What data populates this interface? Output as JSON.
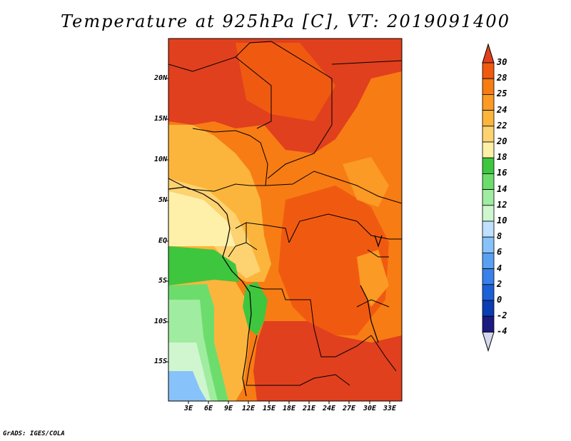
{
  "title": "Temperature at 925hPa [C], VT: 2019091400",
  "footer": "GrADS: IGES/COLA",
  "map": {
    "region": "Central Africa",
    "lat_labels": [
      "20N",
      "15N",
      "10N",
      "5N",
      "EQ",
      "5S",
      "10S",
      "15S"
    ],
    "lon_labels": [
      "3E",
      "6E",
      "9E",
      "12E",
      "15E",
      "18E",
      "21E",
      "24E",
      "27E",
      "30E",
      "33E"
    ]
  },
  "colorbar": {
    "labels": [
      "30",
      "28",
      "25",
      "24",
      "22",
      "20",
      "18",
      "16",
      "14",
      "12",
      "10",
      "8",
      "6",
      "4",
      "2",
      "0",
      "-2",
      "-4"
    ],
    "colors": [
      "#e0401e",
      "#f05a10",
      "#f77c14",
      "#fb9a24",
      "#fcb53c",
      "#fdd270",
      "#fef0a8",
      "#3ec63e",
      "#6cdd6c",
      "#a0eca0",
      "#cff6cf",
      "#bfe0ff",
      "#88c2fa",
      "#5aa0f2",
      "#3a80ea",
      "#1c60d8",
      "#0a3cb4",
      "#1a1a80"
    ],
    "top_color": "#e0401e",
    "bottom_color": "#d6d6f0"
  }
}
